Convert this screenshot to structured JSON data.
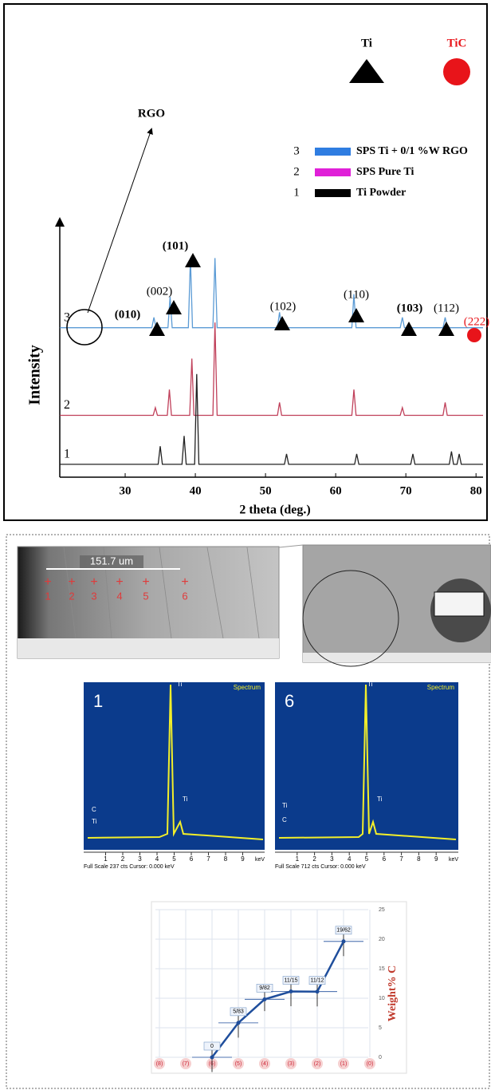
{
  "chart_data": [
    {
      "type": "line",
      "xlabel": "2 theta (deg.)",
      "ylabel": "Intensity",
      "xlim": [
        20,
        81
      ],
      "ylim": [
        0,
        100
      ],
      "xticks": [
        30,
        40,
        50,
        60,
        70,
        80
      ],
      "series": [
        {
          "label": "3",
          "name": "SPS Ti + 0/1 %W RGO",
          "color": "#5b9bd5",
          "legend_color": "#2f7de1",
          "x": [
            20.7,
            33.8,
            34.1,
            34.4,
            36.1,
            36.4,
            36.7,
            39,
            39.3,
            39.6,
            42.5,
            42.8,
            43.1,
            51.7,
            52,
            52.3,
            62.3,
            62.6,
            62.9,
            69.2,
            69.5,
            69.8,
            75.3,
            75.6,
            75.9,
            81
          ],
          "values": [
            58,
            58,
            62,
            58,
            58,
            70,
            58,
            58,
            85,
            58,
            58,
            85,
            58,
            58,
            64,
            58,
            58,
            71,
            58,
            58,
            62,
            58,
            58,
            62,
            58,
            58
          ]
        },
        {
          "label": "2",
          "name": "SPS Pure Ti",
          "color": "#c0405a",
          "legend_color": "#e020d8",
          "x": [
            20.7,
            34,
            34.3,
            34.6,
            36,
            36.3,
            36.6,
            39.2,
            39.5,
            39.8,
            42.5,
            42.8,
            43.1,
            51.7,
            52,
            52.3,
            62.3,
            62.6,
            62.9,
            69.2,
            69.5,
            69.8,
            75.3,
            75.6,
            75.9,
            81
          ],
          "values": [
            24,
            24,
            27,
            24,
            24,
            34,
            24,
            24,
            46,
            24,
            24,
            60,
            24,
            24,
            29,
            24,
            24,
            34,
            24,
            24,
            27,
            24,
            24,
            29,
            24,
            24
          ]
        },
        {
          "label": "1",
          "name": "Ti Powder",
          "color": "#222222",
          "legend_color": "#000000",
          "x": [
            20.7,
            34.7,
            35,
            35.3,
            38.1,
            38.4,
            38.7,
            39.9,
            40.2,
            40.5,
            52.7,
            53,
            53.3,
            62.7,
            63,
            63.3,
            70.7,
            71,
            71.3,
            76.2,
            76.5,
            76.8,
            77.3,
            77.6,
            77.9,
            81
          ],
          "values": [
            5,
            5,
            12,
            5,
            5,
            16,
            5,
            5,
            40,
            5,
            5,
            9,
            5,
            5,
            9,
            5,
            5,
            9,
            5,
            5,
            10,
            5,
            5,
            9,
            5,
            5
          ]
        }
      ],
      "peak_labels": [
        "(010)",
        "(002)",
        "(101)",
        "(102)",
        "(110)",
        "(103)",
        "(112)",
        "(222)"
      ],
      "markers": [
        {
          "label": "Ti",
          "color": "#000000"
        },
        {
          "label": "TiC",
          "color": "#e8141a"
        }
      ],
      "annotation": "RGO"
    },
    {
      "type": "line",
      "ylabel": "Weight% C",
      "categories": [
        "(8)",
        "(7)",
        "(6)",
        "(5)",
        "(4)",
        "(3)",
        "(2)",
        "(1)",
        "(0)"
      ],
      "values": [
        null,
        null,
        0,
        5.83,
        9.82,
        11.15,
        11.12,
        19.62,
        null
      ],
      "value_labels": [
        null,
        null,
        "0",
        "5/83",
        "9/82",
        "11/15",
        "11/12",
        "19/62",
        null
      ],
      "errors": [
        null,
        null,
        2.5,
        2.5,
        2,
        2.5,
        2.5,
        2.5,
        null
      ],
      "ylim": [
        0,
        25
      ],
      "yticks": [
        0,
        5,
        10,
        15,
        20,
        25
      ],
      "color": "#1f4e9c",
      "grid": true
    }
  ],
  "sem": {
    "scale": "151.7 um",
    "points": [
      "1",
      "2",
      "3",
      "4",
      "5",
      "6"
    ]
  },
  "eds": [
    {
      "label": "1",
      "title": "Spectrum",
      "peaks": [
        "C",
        "Ti",
        "Ti",
        "Ti"
      ],
      "footer": "Full Scale 237 cts Cursor: 0.000 keV",
      "unit": "keV",
      "xticks": [
        1,
        2,
        3,
        4,
        5,
        6,
        7,
        8,
        9
      ]
    },
    {
      "label": "6",
      "title": "Spectrum",
      "peaks": [
        "Ti",
        "C",
        "Ti",
        "Ti"
      ],
      "footer": "Full Scale 712 cts Cursor: 0.000 keV",
      "unit": "keV",
      "xticks": [
        1,
        2,
        3,
        4,
        5,
        6,
        7,
        8,
        9
      ]
    }
  ]
}
